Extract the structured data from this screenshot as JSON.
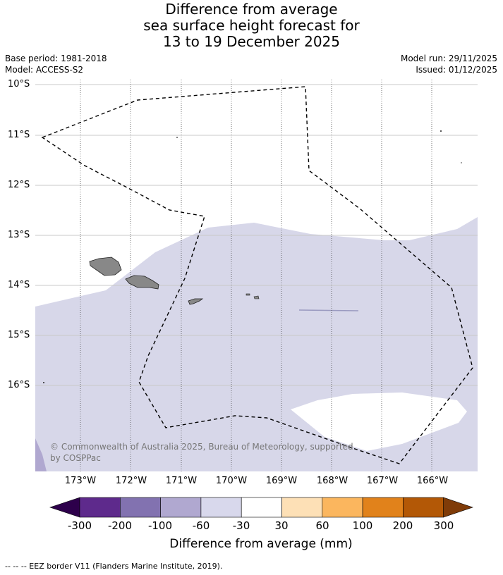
{
  "title": {
    "line1": "Difference from average",
    "line2": "sea surface height forecast for",
    "line3": "13 to 19 December 2025"
  },
  "meta": {
    "base_period": "Base period: 1981-2018",
    "model": "Model: ACCESS-S2",
    "model_run": "Model run: 29/11/2025",
    "issued": "Issued: 01/12/2025"
  },
  "map": {
    "lat_labels": [
      "10°S",
      "11°S",
      "12°S",
      "13°S",
      "14°S",
      "15°S",
      "16°S"
    ],
    "lon_labels": [
      "173°W",
      "172°W",
      "171°W",
      "170°W",
      "169°W",
      "168°W",
      "167°W",
      "166°W"
    ],
    "copyright": "© Commonwealth of Australia 2025, Bureau of Meteorology, supported by COSPPac",
    "colors": {
      "background_anomaly": "#d7d7e9",
      "neutral": "#ffffff",
      "land": "#888888"
    }
  },
  "colorbar": {
    "labels": [
      "-300",
      "-200",
      "-100",
      "-60",
      "-30",
      "30",
      "60",
      "100",
      "200",
      "300"
    ],
    "colors": [
      "#2d004b",
      "#5e2a8c",
      "#8272b0",
      "#b0a8d0",
      "#d8d8ec",
      "#ffffff",
      "#fde0b6",
      "#fbb65e",
      "#e1821b",
      "#b35806",
      "#7f3b08"
    ],
    "title": "Difference from average (mm)"
  },
  "footnote": "--  --  -- EEZ border V11 (Flanders Marine Institute, 2019)."
}
